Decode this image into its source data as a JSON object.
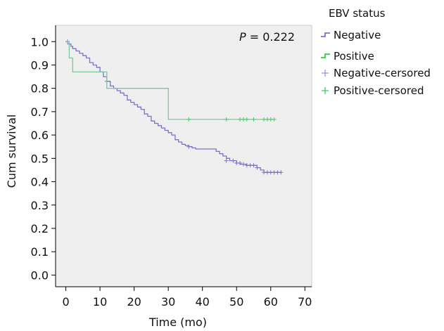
{
  "chart_data": {
    "type": "line",
    "subtype": "kaplan-meier",
    "xlabel": "Time (mo)",
    "ylabel": "Cum survival",
    "xlim": [
      -3,
      72
    ],
    "ylim": [
      -0.05,
      1.07
    ],
    "x_ticks": [
      0,
      10,
      20,
      30,
      40,
      50,
      60,
      70
    ],
    "y_ticks": [
      0.0,
      0.1,
      0.2,
      0.3,
      0.4,
      0.5,
      0.6,
      0.7,
      0.8,
      0.9,
      1.0
    ],
    "annotation": {
      "italic": "P",
      "rest": " = 0.222"
    },
    "legend": {
      "title": "EBV status",
      "entries": [
        "Negative",
        "Positive",
        "Negative-cersored",
        "Positive-cersored"
      ],
      "placement": "right"
    },
    "plot_background": "#efefef",
    "series": [
      {
        "name": "Negative",
        "color": "#7b72c8",
        "censor_color": "#7b72c8",
        "steps": [
          [
            0,
            1.0
          ],
          [
            1,
            0.99
          ],
          [
            1.5,
            0.98
          ],
          [
            2,
            0.97
          ],
          [
            3,
            0.96
          ],
          [
            4,
            0.95
          ],
          [
            5,
            0.94
          ],
          [
            6,
            0.93
          ],
          [
            7,
            0.91
          ],
          [
            8,
            0.9
          ],
          [
            9,
            0.89
          ],
          [
            10,
            0.87
          ],
          [
            11,
            0.85
          ],
          [
            12,
            0.83
          ],
          [
            13,
            0.81
          ],
          [
            14,
            0.8
          ],
          [
            15,
            0.79
          ],
          [
            16,
            0.78
          ],
          [
            17,
            0.77
          ],
          [
            18,
            0.75
          ],
          [
            19,
            0.74
          ],
          [
            20,
            0.73
          ],
          [
            21,
            0.72
          ],
          [
            22,
            0.71
          ],
          [
            23,
            0.69
          ],
          [
            24,
            0.68
          ],
          [
            25,
            0.66
          ],
          [
            26,
            0.65
          ],
          [
            27,
            0.64
          ],
          [
            28,
            0.63
          ],
          [
            29,
            0.62
          ],
          [
            30,
            0.61
          ],
          [
            31,
            0.6
          ],
          [
            32,
            0.58
          ],
          [
            33,
            0.57
          ],
          [
            34,
            0.56
          ],
          [
            35,
            0.555
          ],
          [
            36,
            0.55
          ],
          [
            37,
            0.545
          ],
          [
            38,
            0.54
          ],
          [
            44,
            0.53
          ],
          [
            45,
            0.52
          ],
          [
            46,
            0.51
          ],
          [
            47,
            0.5
          ],
          [
            48,
            0.49
          ],
          [
            50,
            0.48
          ],
          [
            51,
            0.475
          ],
          [
            53,
            0.47
          ],
          [
            56,
            0.46
          ],
          [
            57,
            0.45
          ],
          [
            58,
            0.44
          ],
          [
            63,
            0.44
          ]
        ],
        "censored": [
          [
            0.5,
            1.0
          ],
          [
            1,
            0.99
          ],
          [
            12,
            0.83
          ],
          [
            36,
            0.55
          ],
          [
            47,
            0.49
          ],
          [
            49,
            0.49
          ],
          [
            50,
            0.48
          ],
          [
            51,
            0.48
          ],
          [
            52,
            0.475
          ],
          [
            53,
            0.47
          ],
          [
            54,
            0.47
          ],
          [
            55,
            0.47
          ],
          [
            56,
            0.46
          ],
          [
            58,
            0.44
          ],
          [
            59,
            0.44
          ],
          [
            60,
            0.44
          ],
          [
            61,
            0.44
          ],
          [
            62,
            0.44
          ],
          [
            63,
            0.44
          ]
        ]
      },
      {
        "name": "Positive",
        "color": "#7fc799",
        "censor_color": "#44cc66",
        "steps": [
          [
            0,
            1.0
          ],
          [
            1,
            0.93
          ],
          [
            2,
            0.87
          ],
          [
            11,
            0.87
          ],
          [
            12,
            0.8
          ],
          [
            29,
            0.8
          ],
          [
            30,
            0.667
          ],
          [
            61,
            0.667
          ]
        ],
        "censored": [
          [
            36,
            0.667
          ],
          [
            47,
            0.667
          ],
          [
            51,
            0.667
          ],
          [
            52,
            0.667
          ],
          [
            53,
            0.667
          ],
          [
            55,
            0.667
          ],
          [
            58,
            0.667
          ],
          [
            59,
            0.667
          ],
          [
            60,
            0.667
          ],
          [
            61,
            0.667
          ]
        ]
      }
    ]
  }
}
